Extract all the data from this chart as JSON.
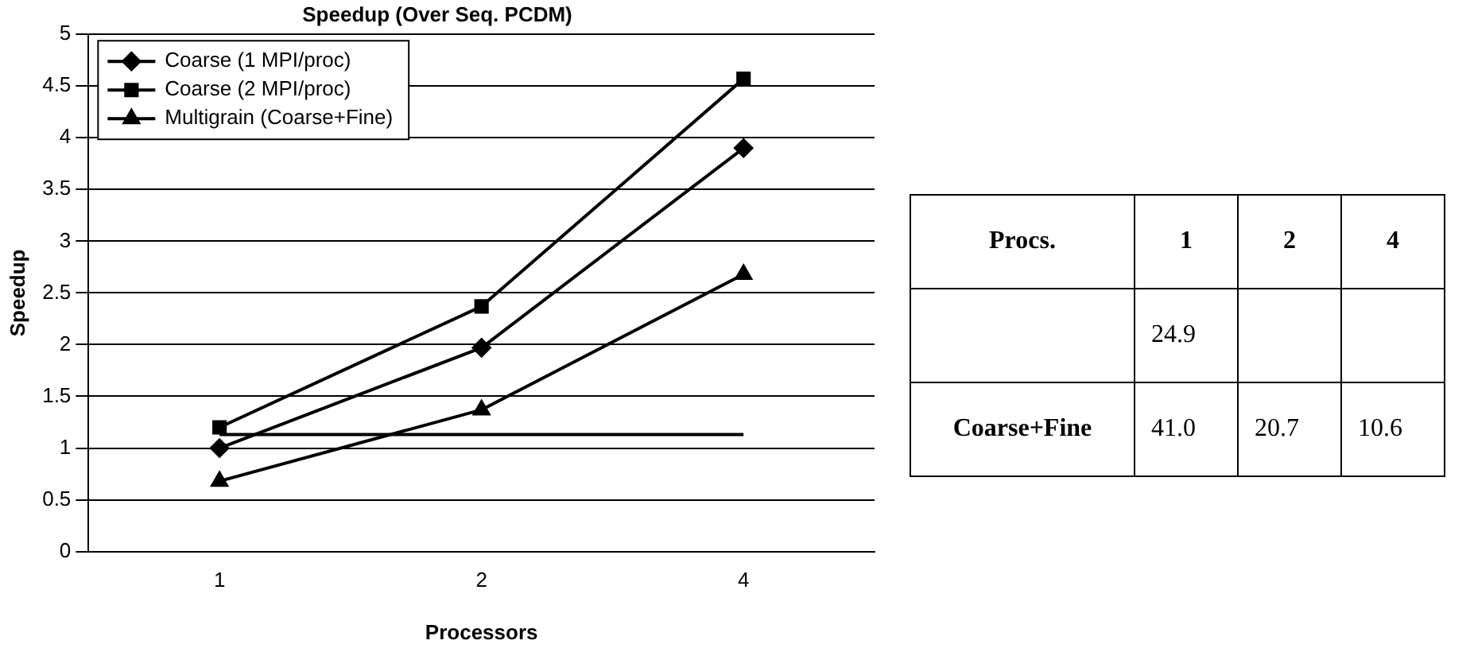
{
  "chart_data": [
    {
      "type": "line",
      "title": "Speedup (Over Seq. PCDM)",
      "xlabel": "Processors",
      "ylabel": "Speedup",
      "categories": [
        "1",
        "2",
        "4"
      ],
      "ylim": [
        0,
        5
      ],
      "yticks": [
        0,
        0.5,
        1,
        1.5,
        2,
        2.5,
        3,
        3.5,
        4,
        4.5,
        5
      ],
      "grid": "y",
      "legend": "top left",
      "line_style": "solid",
      "series": [
        {
          "name": "Coarse (1 MPI/proc)",
          "color": "#000000",
          "marker": "diamond",
          "values": [
            1.0,
            1.97,
            3.9
          ]
        },
        {
          "name": "Coarse (2 MPI/proc)",
          "color": "#000000",
          "marker": "square",
          "values": [
            1.2,
            2.37,
            4.57
          ]
        },
        {
          "name": "Multigrain (Coarse+Fine)",
          "color": "#000000",
          "marker": "triangle",
          "values": [
            0.68,
            1.37,
            2.68
          ]
        },
        {
          "color": "#000000",
          "marker": "none",
          "values": [
            1.13,
            1.13,
            1.13
          ]
        }
      ]
    },
    {
      "type": "other",
      "xlabel": "Procs.",
      "categories": [
        "1",
        "2",
        "4"
      ],
      "y_categories": [
        null,
        "Coarse+Fine"
      ],
      "cell_labels": [
        [
          "24.9",
          null,
          null
        ],
        [
          "41.0",
          "20.7",
          "10.6"
        ]
      ]
    }
  ]
}
